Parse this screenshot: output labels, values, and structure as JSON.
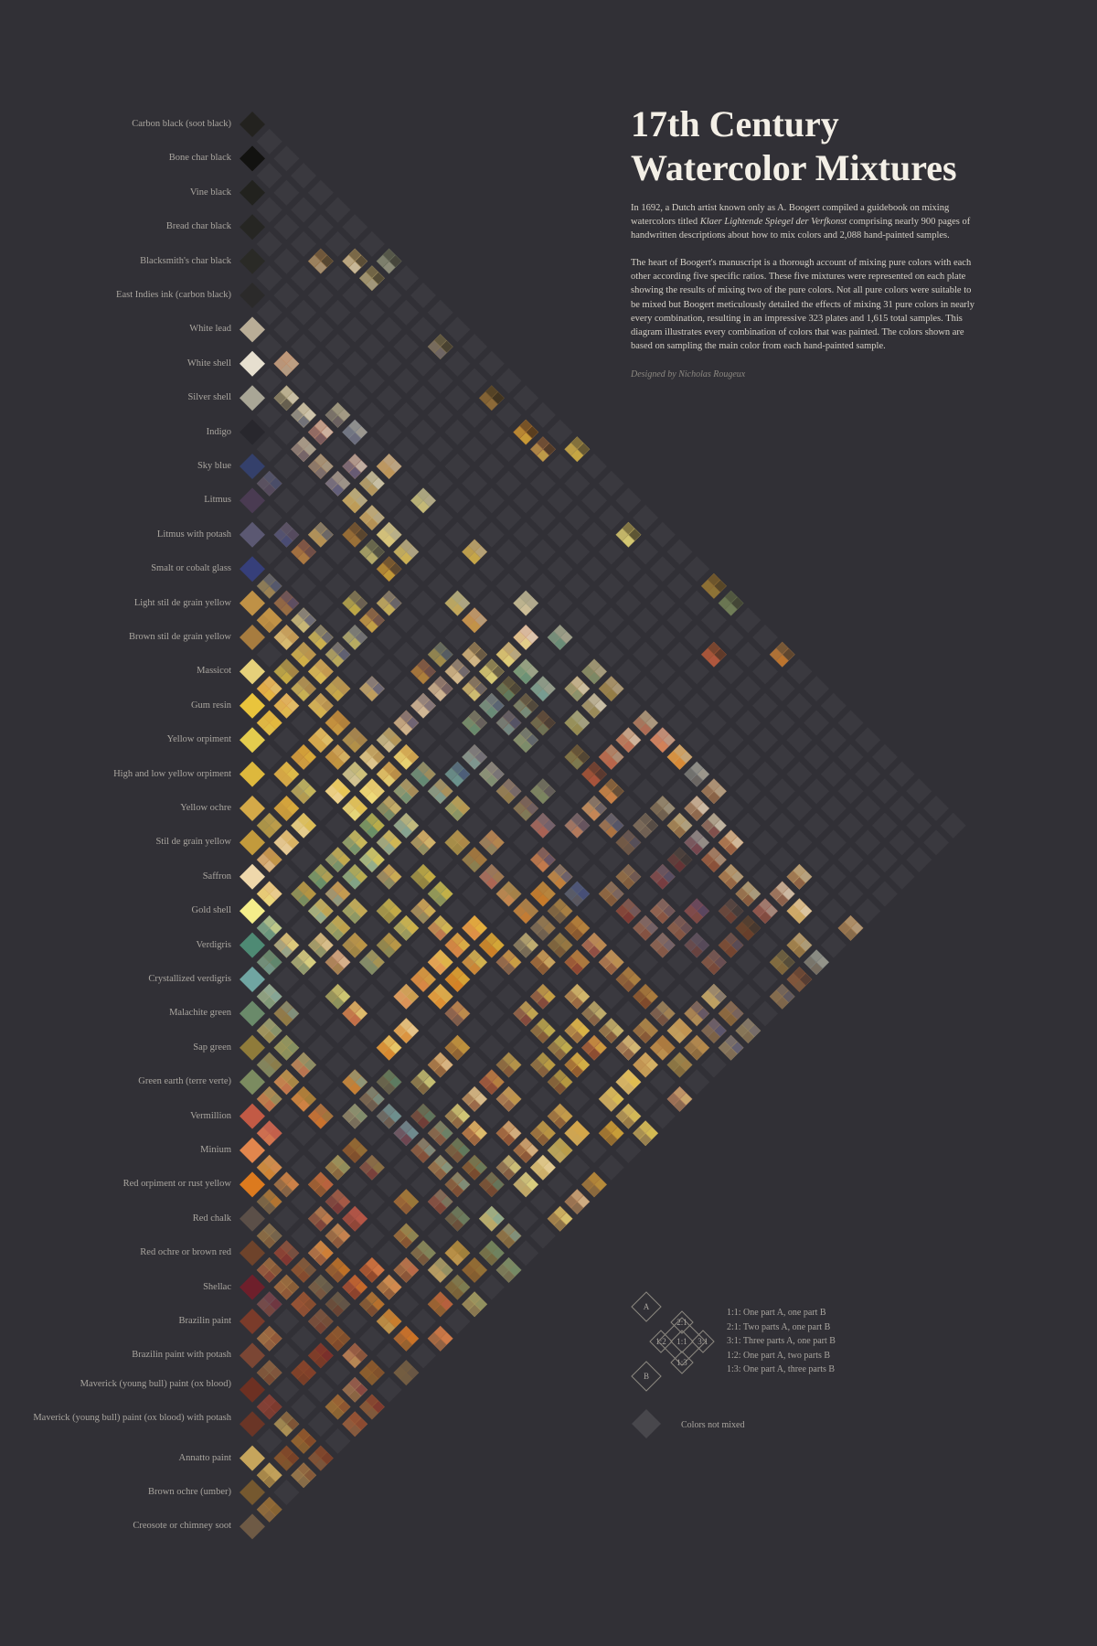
{
  "title_line1": "17th Century",
  "title_line2": "Watercolor Mixtures",
  "intro_paragraph_a": "In 1692, a Dutch artist known only as A. Boogert compiled a guidebook on mixing watercolors titled ",
  "intro_book_title": "Klaer Lightende Spiegel der Verfkonst",
  "intro_paragraph_b": " comprising nearly 900 pages of handwritten descriptions about how to mix colors and 2,088 hand-painted samples.",
  "body_paragraph": "The heart of Boogert's manuscript is a thorough account of mixing pure colors with each other according five specific ratios. These five mixtures were represented on each plate showing the results of mixing two of the pure colors. Not all pure colors were suitable to be mixed but Boogert meticulously detailed the effects of mixing 31 pure colors in nearly every combination, resulting in an impressive 323 plates and 1,615 total samples. This diagram illustrates every combination of colors that was painted. The colors shown are based on sampling the main color from each hand-painted sample.",
  "byline": "Designed by Nicholas Rougeux",
  "colors": [
    {
      "name": "Carbon black (soot black)",
      "color": "#23221f"
    },
    {
      "name": "Bone char black",
      "color": "#121210"
    },
    {
      "name": "Vine black",
      "color": "#22221e"
    },
    {
      "name": "Bread char black",
      "color": "#262623"
    },
    {
      "name": "Blacksmith's char black",
      "color": "#2a2a26"
    },
    {
      "name": "East Indies ink (carbon black)",
      "color": "#2b2a2a"
    },
    {
      "name": "White lead",
      "color": "#b9ad97"
    },
    {
      "name": "White shell",
      "color": "#e6dfcf"
    },
    {
      "name": "Silver shell",
      "color": "#a9a696"
    },
    {
      "name": "Indigo",
      "color": "#28272d"
    },
    {
      "name": "Sky blue",
      "color": "#34406b"
    },
    {
      "name": "Litmus",
      "color": "#4a3b52"
    },
    {
      "name": "Litmus with potash",
      "color": "#5b5872"
    },
    {
      "name": "Smalt or cobalt glass",
      "color": "#363f7a"
    },
    {
      "name": "Light stil de grain yellow",
      "color": "#bf9146"
    },
    {
      "name": "Brown stil de grain yellow",
      "color": "#a77c3f"
    },
    {
      "name": "Massicot",
      "color": "#e5d07a"
    },
    {
      "name": "Gum resin",
      "color": "#e9c43c"
    },
    {
      "name": "Yellow orpiment",
      "color": "#e4cc4e"
    },
    {
      "name": "High and low yellow orpiment",
      "color": "#ddb83d"
    },
    {
      "name": "Yellow ochre",
      "color": "#d4a948"
    },
    {
      "name": "Stil de grain yellow",
      "color": "#c29a3c"
    },
    {
      "name": "Saffron",
      "color": "#efd8ab"
    },
    {
      "name": "Gold shell",
      "color": "#f4ee8a"
    },
    {
      "name": "Verdigris",
      "color": "#4e8a74"
    },
    {
      "name": "Crystallized verdigris",
      "color": "#70a5a2"
    },
    {
      "name": "Malachite green",
      "color": "#6a8a6a"
    },
    {
      "name": "Sap green",
      "color": "#8f7b3a"
    },
    {
      "name": "Green earth (terre verte)",
      "color": "#7b8b60"
    },
    {
      "name": "Vermillion",
      "color": "#c25a45"
    },
    {
      "name": "Minium",
      "color": "#e2864d"
    },
    {
      "name": "Red orpiment or rust yellow",
      "color": "#dc7a1e"
    },
    {
      "name": "Red chalk",
      "color": "#5b4f48"
    },
    {
      "name": "Red ochre or brown red",
      "color": "#6e432b"
    },
    {
      "name": "Shellac",
      "color": "#6e1f2b"
    },
    {
      "name": "Brazilin paint",
      "color": "#7a3b2a"
    },
    {
      "name": "Brazilin paint with potash",
      "color": "#7b4634"
    },
    {
      "name": "Maverick (young bull) paint (ox blood)",
      "color": "#6d3022"
    },
    {
      "name": "Maverick (young bull) paint (ox blood) with potash",
      "color": "#6a3526"
    },
    {
      "name": "Annatto paint",
      "color": "#c6a55c"
    },
    {
      "name": "Brown ochre (umber)",
      "color": "#75582f"
    },
    {
      "name": "Creosote or chimney soot",
      "color": "#6e5a45"
    }
  ],
  "legend": {
    "a_label": "A",
    "b_label": "B",
    "ratio_tags": [
      "2:1",
      "1:2",
      "1:1",
      "3:1",
      "1:3"
    ],
    "ratios": [
      "1:1: One part A, one part B",
      "2:1: Two parts A, one part B",
      "3:1: Three parts A, one part B",
      "1:2: One part A, two parts B",
      "1:3: One part A, three parts B"
    ],
    "not_mixed": "Colors not mixed",
    "not_mixed_color": "#48474c"
  },
  "grid_color": "#3a393f",
  "mix_palette": [
    "#c98a3a",
    "#d8a34a",
    "#b9772f",
    "#a65c2e",
    "#8b6a3a",
    "#c9b468",
    "#9aa06a",
    "#6f7a5c",
    "#cf6e3a",
    "#b9926a",
    "#e0c06a",
    "#8a7f6e",
    "#6b7f8e",
    "#b25a5a",
    "#d7b88a",
    "#7c8a5e"
  ]
}
